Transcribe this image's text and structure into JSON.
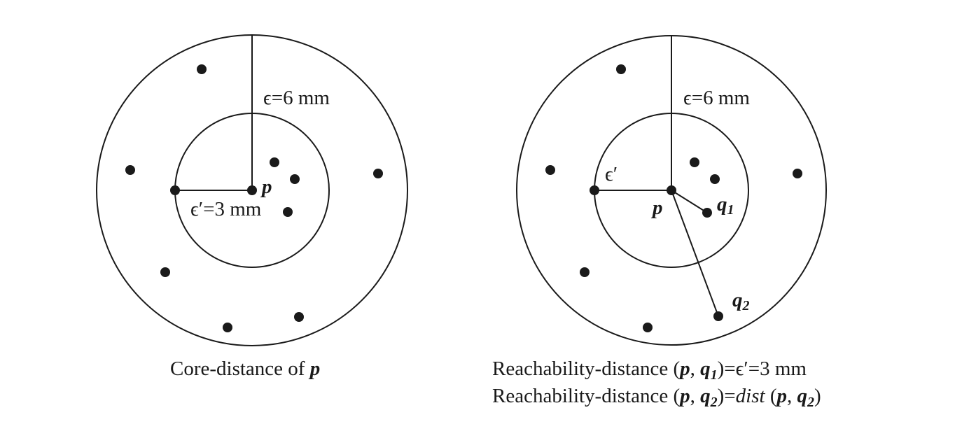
{
  "left_panel": {
    "eps_label": "ϵ=6 mm",
    "eps_prime_label": "ϵ′=3 mm",
    "point_p": "p",
    "caption": {
      "text": "Core-distance of ",
      "var": "p"
    }
  },
  "right_panel": {
    "eps_label": "ϵ=6 mm",
    "eps_prime_label": "ϵ′",
    "point_p": "p",
    "point_q1": {
      "base": "q",
      "sub": "1"
    },
    "point_q2": {
      "base": "q",
      "sub": "2"
    },
    "caption_line1": {
      "prefix": "Reachability-distance (",
      "p": "p",
      "comma": ", ",
      "q": "q",
      "q_sub": "1",
      "suffix": ")=ϵ′=3 mm"
    },
    "caption_line2": {
      "prefix": "Reachability-distance (",
      "p": "p",
      "comma": ", ",
      "q": "q",
      "q_sub": "2",
      "eq": ")=",
      "dist": "dist",
      "open": " (",
      "p2": "p",
      "comma2": ", ",
      "q2": "q",
      "q2_sub": "2",
      "close": ")"
    }
  }
}
